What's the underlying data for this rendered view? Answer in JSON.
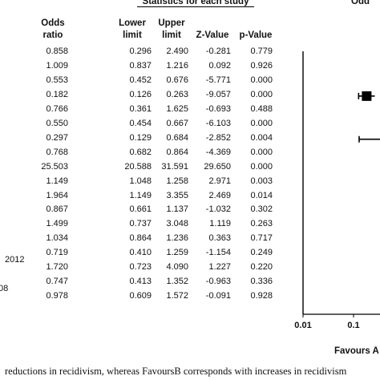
{
  "section_header": "Statistics for each study",
  "plot_header": "Odd",
  "columns": [
    "Odds ratio",
    "Lower limit",
    "Upper limit",
    "Z-Value",
    "p-Value"
  ],
  "column_header_lines": [
    [
      "Odds",
      "ratio"
    ],
    [
      "Lower",
      "limit"
    ],
    [
      "Upper",
      "limit"
    ],
    [
      "Z-Value"
    ],
    [
      "p-Value"
    ]
  ],
  "study_label_fragments": [
    {
      "row": 14,
      "text": "2012"
    },
    {
      "row": 16,
      "text": "08"
    }
  ],
  "footer_label": "Favours A",
  "caption": "reductions in recidivism, whereas FavoursB corresponds with increases in recidivism",
  "chart_data": {
    "type": "table",
    "rows": [
      [
        "0.858",
        "0.296",
        "2.490",
        "-0.281",
        "0.779"
      ],
      [
        "1.009",
        "0.837",
        "1.216",
        "0.092",
        "0.926"
      ],
      [
        "0.553",
        "0.452",
        "0.676",
        "-5.771",
        "0.000"
      ],
      [
        "0.182",
        "0.126",
        "0.263",
        "-9.057",
        "0.000"
      ],
      [
        "0.766",
        "0.361",
        "1.625",
        "-0.693",
        "0.488"
      ],
      [
        "0.550",
        "0.454",
        "0.667",
        "-6.103",
        "0.000"
      ],
      [
        "0.297",
        "0.129",
        "0.684",
        "-2.852",
        "0.004"
      ],
      [
        "0.768",
        "0.682",
        "0.864",
        "-4.369",
        "0.000"
      ],
      [
        "25.503",
        "20.588",
        "31.591",
        "29.650",
        "0.000"
      ],
      [
        "1.149",
        "1.048",
        "1.258",
        "2.971",
        "0.003"
      ],
      [
        "1.964",
        "1.149",
        "3.355",
        "2.469",
        "0.014"
      ],
      [
        "0.867",
        "0.661",
        "1.137",
        "-1.032",
        "0.302"
      ],
      [
        "1.499",
        "0.737",
        "3.048",
        "1.119",
        "0.263"
      ],
      [
        "1.034",
        "0.864",
        "1.236",
        "0.363",
        "0.717"
      ],
      [
        "0.719",
        "0.410",
        "1.259",
        "-1.154",
        "0.249"
      ],
      [
        "1.720",
        "0.723",
        "4.090",
        "1.227",
        "0.220"
      ],
      [
        "0.747",
        "0.413",
        "1.352",
        "-0.963",
        "0.336"
      ],
      [
        "0.978",
        "0.609",
        "1.572",
        "-0.091",
        "0.928"
      ]
    ],
    "x_axis": {
      "scale": "log",
      "visible_ticks": [
        "0.01",
        "0.1"
      ]
    },
    "visible_markers": [
      {
        "row": 3,
        "or": 0.182,
        "lower": 0.126,
        "upper": 0.263,
        "marker": "square"
      },
      {
        "row": 6,
        "or": 0.297,
        "lower": 0.129,
        "upper": 0.684,
        "marker": "line"
      }
    ]
  }
}
